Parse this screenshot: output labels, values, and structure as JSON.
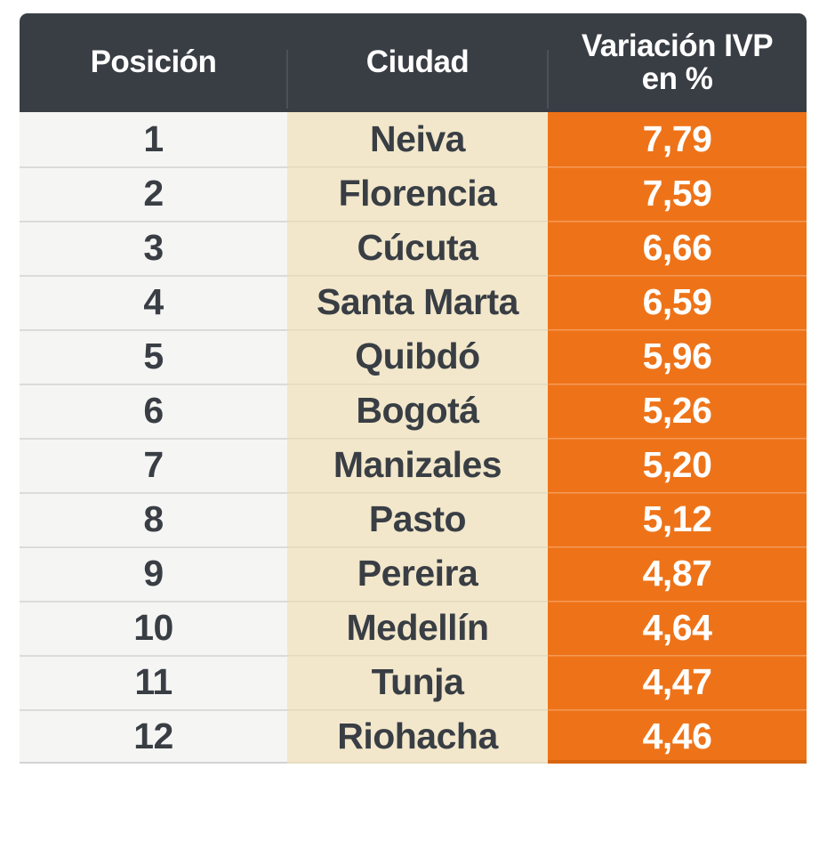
{
  "table": {
    "columns": [
      {
        "key": "position",
        "label": "Posición"
      },
      {
        "key": "city",
        "label": "Ciudad"
      },
      {
        "key": "variation",
        "label": "Variación IVP en %",
        "label_line1": "Variación IVP",
        "label_line2": "en %"
      }
    ],
    "rows": [
      {
        "position": "1",
        "city": "Neiva",
        "variation": "7,79"
      },
      {
        "position": "2",
        "city": "Florencia",
        "variation": "7,59"
      },
      {
        "position": "3",
        "city": "Cúcuta",
        "variation": "6,66"
      },
      {
        "position": "4",
        "city": "Santa Marta",
        "variation": "6,59"
      },
      {
        "position": "5",
        "city": "Quibdó",
        "variation": "5,96"
      },
      {
        "position": "6",
        "city": "Bogotá",
        "variation": "5,26"
      },
      {
        "position": "7",
        "city": "Manizales",
        "variation": "5,20"
      },
      {
        "position": "8",
        "city": "Pasto",
        "variation": "5,12"
      },
      {
        "position": "9",
        "city": "Pereira",
        "variation": "4,87"
      },
      {
        "position": "10",
        "city": "Medellín",
        "variation": "4,64"
      },
      {
        "position": "11",
        "city": "Tunja",
        "variation": "4,47"
      },
      {
        "position": "12",
        "city": "Riohacha",
        "variation": "4,46"
      }
    ]
  },
  "chart_data": {
    "type": "table",
    "columns": [
      "Posición",
      "Ciudad",
      "Variación IVP en %"
    ],
    "rows": [
      [
        1,
        "Neiva",
        7.79
      ],
      [
        2,
        "Florencia",
        7.59
      ],
      [
        3,
        "Cúcuta",
        6.66
      ],
      [
        4,
        "Santa Marta",
        6.59
      ],
      [
        5,
        "Quibdó",
        5.96
      ],
      [
        6,
        "Bogotá",
        5.26
      ],
      [
        7,
        "Manizales",
        5.2
      ],
      [
        8,
        "Pasto",
        5.12
      ],
      [
        9,
        "Pereira",
        4.87
      ],
      [
        10,
        "Medellín",
        4.64
      ],
      [
        11,
        "Tunja",
        4.47
      ],
      [
        12,
        "Riohacha",
        4.46
      ]
    ],
    "number_format": "decimal-comma",
    "sort": "descending by Variación IVP en %"
  },
  "colors": {
    "header_background": "#393E44",
    "position_column_background": "#F5F5F4",
    "city_column_background": "#F2E7CB",
    "value_column_background": "#EE7318",
    "value_column_bottom_edge": "#D8650F",
    "body_text": "#393E44",
    "header_text": "#FFFFFF",
    "value_text": "#FFFFFF",
    "page_background": "#FFFFFF"
  }
}
